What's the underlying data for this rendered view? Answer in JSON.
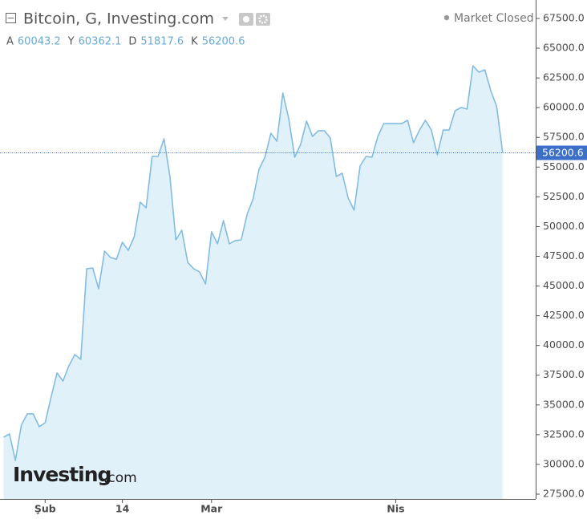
{
  "chart_data": {
    "type": "area",
    "title": "Bitcoin, G, Investing.com",
    "status": "Market Closed",
    "ohlc": [
      {
        "label": "A",
        "value": 60043.2
      },
      {
        "label": "Y",
        "value": 60362.1
      },
      {
        "label": "D",
        "value": 51817.6
      },
      {
        "label": "K",
        "value": 56200.6
      }
    ],
    "watermark": {
      "brand": "Investing",
      "suffix": ".com"
    },
    "categories": [
      null,
      null,
      null,
      null,
      null,
      null,
      null,
      "Şub",
      null,
      null,
      null,
      null,
      null,
      null,
      null,
      null,
      null,
      null,
      null,
      null,
      "14",
      null,
      null,
      null,
      null,
      null,
      null,
      null,
      null,
      null,
      null,
      null,
      null,
      null,
      null,
      "Mar",
      null,
      null,
      null,
      null,
      null,
      null,
      null,
      null,
      null,
      null,
      null,
      null,
      null,
      null,
      null,
      null,
      null,
      null,
      null,
      null,
      null,
      null,
      null,
      null,
      null,
      null,
      null,
      null,
      null,
      null,
      "Nis",
      null,
      null,
      null,
      null,
      null,
      null,
      null,
      null,
      null,
      null,
      null,
      null,
      null,
      null,
      null,
      null,
      null,
      null
    ],
    "values": [
      32290,
      32560,
      30330,
      33300,
      34250,
      34250,
      33170,
      33500,
      35660,
      37690,
      37010,
      38290,
      39240,
      38830,
      46450,
      46520,
      44770,
      47940,
      47400,
      47260,
      48680,
      48000,
      49150,
      52050,
      51580,
      55900,
      55900,
      57380,
      54210,
      48880,
      49690,
      46990,
      46450,
      46180,
      45170,
      49560,
      48550,
      50500,
      48550,
      48820,
      48880,
      51040,
      52320,
      54820,
      55830,
      57850,
      57180,
      61230,
      59070,
      55830,
      56910,
      58870,
      57580,
      58060,
      58060,
      57450,
      54210,
      54480,
      52390,
      51380,
      55090,
      55900,
      55830,
      57580,
      58660,
      58660,
      58660,
      58660,
      58930,
      57040,
      58120,
      58930,
      58120,
      56030,
      58120,
      58120,
      59740,
      60010,
      59880,
      63520,
      62980,
      63180,
      61430,
      60080,
      56200.6
    ],
    "color": "#83bce3",
    "fill": "#e1f1fa",
    "last_line_color": "#3d6fc8",
    "ylim": [
      27095,
      68714
    ],
    "yticks": [
      {
        "value": 27500,
        "label": "27500.0"
      },
      {
        "value": 30000,
        "label": "30000.0"
      },
      {
        "value": 32500,
        "label": "32500.0"
      },
      {
        "value": 35000,
        "label": "35000.0"
      },
      {
        "value": 37500,
        "label": "37500.0"
      },
      {
        "value": 40000,
        "label": "40000.0"
      },
      {
        "value": 42500,
        "label": "42500.0"
      },
      {
        "value": 45000,
        "label": "45000.0"
      },
      {
        "value": 47500,
        "label": "47500.0"
      },
      {
        "value": 50000,
        "label": "50000.0"
      },
      {
        "value": 52500,
        "label": "52500.0"
      },
      {
        "value": 55000,
        "label": "55000.0"
      },
      {
        "value": 57500,
        "label": "57500.0"
      },
      {
        "value": 60000,
        "label": "60000.0"
      },
      {
        "value": 62500,
        "label": "62500.0"
      },
      {
        "value": 65000,
        "label": "65000.0"
      },
      {
        "value": 67500,
        "label": "67500.0"
      }
    ]
  }
}
